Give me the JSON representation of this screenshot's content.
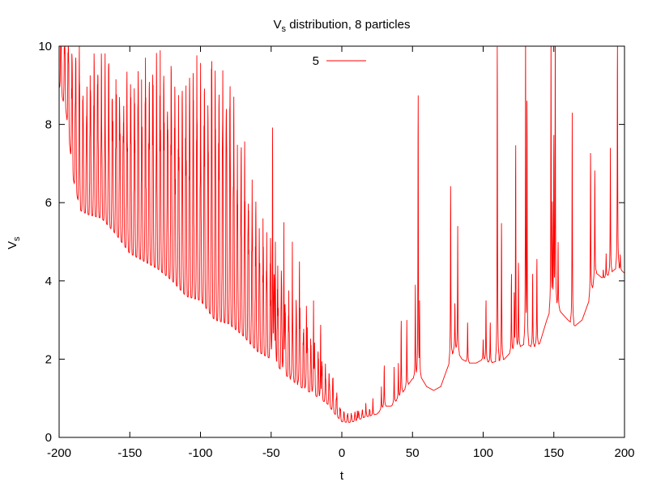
{
  "chart_data": {
    "type": "line",
    "title": "V",
    "title_subscript": "s",
    "title_suffix": " distribution, 8 particles",
    "xlabel": "t",
    "ylabel": "V",
    "ylabel_subscript": "s",
    "xlim": [
      -200,
      200
    ],
    "ylim": [
      0,
      10
    ],
    "xticks": [
      -200,
      -150,
      -100,
      -50,
      0,
      50,
      100,
      150,
      200
    ],
    "yticks": [
      0,
      2,
      4,
      6,
      8,
      10
    ],
    "grid": false,
    "legend_position": "top-center",
    "series": [
      {
        "name": "5",
        "color": "#ff0000",
        "envelope_low": [
          [
            -200,
            9.0
          ],
          [
            -195,
            8.3
          ],
          [
            -190,
            6.6
          ],
          [
            -185,
            5.8
          ],
          [
            -180,
            5.7
          ],
          [
            -170,
            5.6
          ],
          [
            -160,
            5.2
          ],
          [
            -150,
            4.7
          ],
          [
            -140,
            4.5
          ],
          [
            -130,
            4.3
          ],
          [
            -120,
            4.0
          ],
          [
            -110,
            3.6
          ],
          [
            -100,
            3.5
          ],
          [
            -90,
            3.0
          ],
          [
            -80,
            2.9
          ],
          [
            -70,
            2.6
          ],
          [
            -60,
            2.2
          ],
          [
            -50,
            2.0
          ],
          [
            -40,
            1.6
          ],
          [
            -30,
            1.3
          ],
          [
            -20,
            1.1
          ],
          [
            -10,
            0.85
          ],
          [
            -5,
            0.6
          ],
          [
            0,
            0.4
          ],
          [
            5,
            0.38
          ],
          [
            10,
            0.42
          ],
          [
            15,
            0.5
          ],
          [
            20,
            0.55
          ],
          [
            25,
            0.6
          ],
          [
            30,
            0.8
          ],
          [
            35,
            0.8
          ],
          [
            40,
            1.0
          ],
          [
            45,
            1.25
          ],
          [
            50,
            1.5
          ],
          [
            55,
            1.6
          ],
          [
            60,
            1.3
          ],
          [
            65,
            1.2
          ],
          [
            70,
            1.3
          ],
          [
            75,
            1.8
          ],
          [
            80,
            2.3
          ],
          [
            85,
            2.0
          ],
          [
            90,
            1.9
          ],
          [
            95,
            1.9
          ],
          [
            100,
            2.0
          ],
          [
            105,
            1.9
          ],
          [
            110,
            1.95
          ],
          [
            115,
            2.0
          ],
          [
            120,
            2.2
          ],
          [
            125,
            2.3
          ],
          [
            130,
            2.4
          ],
          [
            135,
            2.3
          ],
          [
            140,
            2.4
          ],
          [
            145,
            3.0
          ],
          [
            150,
            3.5
          ],
          [
            155,
            3.2
          ],
          [
            160,
            3.0
          ],
          [
            165,
            2.85
          ],
          [
            170,
            3.0
          ],
          [
            175,
            3.5
          ],
          [
            180,
            4.2
          ],
          [
            185,
            4.05
          ],
          [
            190,
            4.2
          ],
          [
            195,
            4.35
          ],
          [
            200,
            4.2
          ]
        ],
        "oscillation_amplitude": [
          [
            -200,
            1.5
          ],
          [
            -190,
            4.0
          ],
          [
            -170,
            4.4
          ],
          [
            -150,
            5.3
          ],
          [
            -130,
            5.7
          ],
          [
            -110,
            6.4
          ],
          [
            -100,
            6.5
          ],
          [
            -90,
            7.0
          ],
          [
            -80,
            7.0
          ],
          [
            -70,
            5.5
          ],
          [
            -60,
            4.0
          ],
          [
            -50,
            3.2
          ],
          [
            -40,
            2.5
          ],
          [
            -30,
            2.2
          ],
          [
            -20,
            1.4
          ],
          [
            -10,
            1.0
          ],
          [
            -5,
            0.9
          ],
          [
            0,
            0.3
          ],
          [
            10,
            0.25
          ],
          [
            20,
            0.2
          ]
        ],
        "spikes": [
          [
            -49,
            8.3
          ],
          [
            -47,
            5.0
          ],
          [
            -41,
            5.5
          ],
          [
            -35,
            5.0
          ],
          [
            -30,
            4.7
          ],
          [
            -25,
            3.5
          ],
          [
            -20,
            3.5
          ],
          [
            -15,
            3.0
          ],
          [
            11,
            0.7
          ],
          [
            17,
            0.9
          ],
          [
            22,
            1.0
          ],
          [
            28,
            1.3
          ],
          [
            30,
            1.9
          ],
          [
            37,
            1.8
          ],
          [
            40,
            1.9
          ],
          [
            42,
            3.1
          ],
          [
            46,
            3.0
          ],
          [
            52,
            3.9
          ],
          [
            54,
            9.2
          ],
          [
            55,
            3.5
          ],
          [
            77,
            6.7
          ],
          [
            80,
            3.5
          ],
          [
            82,
            5.4
          ],
          [
            89,
            3.0
          ],
          [
            100,
            2.5
          ],
          [
            102,
            3.6
          ],
          [
            105,
            3.0
          ],
          [
            110,
            10.5
          ],
          [
            113,
            5.7
          ],
          [
            120,
            4.3
          ],
          [
            122,
            3.8
          ],
          [
            123,
            7.8
          ],
          [
            125,
            4.6
          ],
          [
            130,
            10.5
          ],
          [
            131,
            9.0
          ],
          [
            135,
            4.3
          ],
          [
            138,
            4.7
          ],
          [
            148,
            10.5
          ],
          [
            149,
            6.2
          ],
          [
            150,
            8.0
          ],
          [
            151,
            10.5
          ],
          [
            153,
            5.1
          ],
          [
            163,
            8.3
          ],
          [
            176,
            7.5
          ],
          [
            179,
            7.0
          ],
          [
            182,
            3.9
          ],
          [
            185,
            4.3
          ],
          [
            187,
            4.7
          ],
          [
            190,
            7.4
          ],
          [
            195,
            10.5
          ],
          [
            197,
            4.7
          ]
        ]
      }
    ]
  }
}
